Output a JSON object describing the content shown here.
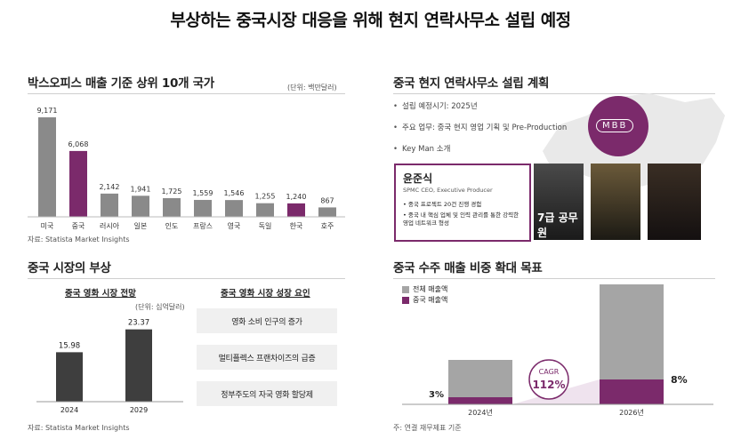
{
  "page_title": "부상하는 중국시장 대응을 위해 현지 연락사무소 설립 예정",
  "box_office": {
    "title": "박스오피스 매출 기준 상위 10개 국가",
    "unit": "(단위: 백만달러)",
    "source": "자료: Statista Market Insights"
  },
  "china_market": {
    "title": "중국 시장의 부상",
    "forecast_title": "중국 영화 시장 전망",
    "forecast_unit": "(단위: 십억달러)",
    "factors_title": "중국 영화 시장 성장 요인",
    "factors": [
      "영화 소비 인구의 증가",
      "멀티플렉스 프랜차이즈의 급증",
      "정부주도의 자국 영화 할당제"
    ],
    "source": "자료: Statista Market Insights"
  },
  "office_plan": {
    "title": "중국 현지 연락사무소 설립 계획",
    "bullets": [
      "설립 예정시기: 2025년",
      "주요 업무: 중국 현지 영업 기획 및 Pre-Production",
      "Key Man 소개"
    ],
    "logo_text": "MBB",
    "person_name": "윤준식",
    "person_role": "SPMC CEO, Executive Producer",
    "person_points": [
      "중국 프로젝트 20건 진행 경험",
      "중국 내 핵심 업체 및 인력 관리를 통한 강력한 영업 네트워크 형성"
    ],
    "poster_titles": [
      "7급 공무원",
      "",
      ""
    ]
  },
  "revenue_target": {
    "title": "중국 수주 매출 비중 확대 목표",
    "legend_total": "전체 매출액",
    "legend_china": "중국 매출액",
    "cagr_label": "CAGR",
    "cagr_value": "112%",
    "label_2024": "3%",
    "label_2026": "8%",
    "note": "주: 연결 재무제표 기준"
  },
  "chart_data": [
    {
      "type": "bar",
      "title": "박스오피스 매출 기준 상위 10개 국가",
      "categories": [
        "미국",
        "중국",
        "러시아",
        "일본",
        "인도",
        "프랑스",
        "영국",
        "독일",
        "한국",
        "호주"
      ],
      "values": [
        9171,
        6068,
        2142,
        1941,
        1725,
        1559,
        1546,
        1255,
        1240,
        867
      ],
      "value_labels": [
        "9,171",
        "6,068",
        "2,142",
        "1,941",
        "1,725",
        "1,559",
        "1,546",
        "1,255",
        "1,240",
        "867"
      ],
      "highlight": [
        "중국",
        "한국"
      ],
      "colors": {
        "default": "#8a8a8a",
        "highlight": "#7b2a6b"
      },
      "ylim": [
        0,
        9500
      ]
    },
    {
      "type": "bar",
      "title": "중국 영화 시장 전망",
      "categories": [
        "2024",
        "2029"
      ],
      "values": [
        15.98,
        23.37
      ],
      "value_labels": [
        "15.98",
        "23.37"
      ],
      "colors": {
        "bar": "#3e3e3e"
      },
      "ylim": [
        0,
        27
      ]
    },
    {
      "type": "bar",
      "title": "중국 수주 매출 비중 확대 목표",
      "categories": [
        "2024년",
        "2026년"
      ],
      "series": [
        {
          "name": "전체 매출액",
          "values": [
            100,
            270
          ]
        },
        {
          "name": "중국 매출액",
          "values": [
            3,
            8
          ]
        }
      ],
      "share_labels": [
        "3%",
        "8%"
      ],
      "colors": {
        "total": "#a5a5a5",
        "china": "#7b2a6b"
      }
    }
  ]
}
